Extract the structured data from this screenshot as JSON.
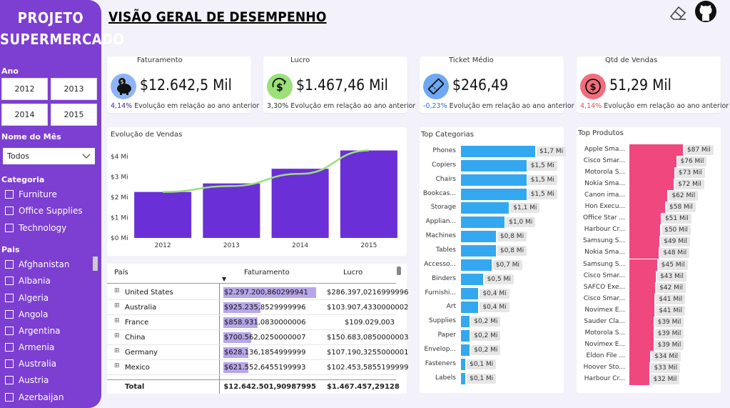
{
  "sidebar": {
    "brand_line1": "PROJETO",
    "brand_line2": "SUPERMERCADO",
    "ano_label": "Ano",
    "years": [
      "2012",
      "2013",
      "2014",
      "2015"
    ],
    "mes_label": "Nome do Mês",
    "mes_value": "Todos",
    "categoria_label": "Categoria",
    "categorias": [
      "Furniture",
      "Office Supplies",
      "Technology"
    ],
    "pais_label": "Pais",
    "paises": [
      "Afghanistan",
      "Albania",
      "Algeria",
      "Angola",
      "Argentina",
      "Armenia",
      "Australia",
      "Austria",
      "Azerbaijan"
    ]
  },
  "header": {
    "title": "VISÃO GERAL DE DESEMPENHO",
    "eraser_icon": "eraser-icon",
    "github_icon": "github-icon"
  },
  "kpis": [
    {
      "title": "Faturamento",
      "value": "$12.642,5 Mil",
      "pct": "4,14%",
      "foot": "Evolução em relação ao ano anterior",
      "icon": "piggy-bank-icon",
      "icon_color": "#8fb4f5",
      "pct_color": "#4a2a8c"
    },
    {
      "title": "Lucro",
      "value": "$1.467,46 Mil",
      "pct": "3,30%",
      "foot": "Evolução em relação ao ano anterior",
      "icon": "money-growth-icon",
      "icon_color": "#9be07a",
      "pct_color": "#333333"
    },
    {
      "title": "Ticket Médio",
      "value": "$246,49",
      "pct": "-0,23%",
      "foot": "Evolução em relação ao ano anterior",
      "icon": "ticket-icon",
      "icon_color": "#6fa8f2",
      "pct_color": "#2f6fd6"
    },
    {
      "title": "Qtd de Vendas",
      "value": "51,29 Mil",
      "pct": "4,14%",
      "foot": "Evolução em relação ao ano anterior",
      "icon": "dollar-coin-icon",
      "icon_color": "#f26d7d",
      "pct_color": "#d9534f"
    }
  ],
  "chart_data": [
    {
      "type": "bar",
      "title": "Evolução de Vendas",
      "categories": [
        "2012",
        "2013",
        "2014",
        "2015"
      ],
      "values": [
        2.26,
        2.68,
        3.4,
        4.3
      ],
      "trend": [
        2.26,
        2.55,
        3.15,
        4.3
      ],
      "ylim": [
        0,
        4.6
      ],
      "yticks": [
        "$0 Mi",
        "$1 Mi",
        "$2 Mi",
        "$3 Mi",
        "$4 Mi"
      ],
      "bar_color": "#6a2fd6",
      "line_color": "#9be07a"
    },
    {
      "type": "bar",
      "title": "Top Categorias",
      "orientation": "horizontal",
      "bar_color": "#33a8f0",
      "max": 1.75,
      "categories": [
        "Phones",
        "Copiers",
        "Chairs",
        "Bookcas...",
        "Storage",
        "Applian...",
        "Machines",
        "Tables",
        "Accesso...",
        "Binders",
        "Furnishi...",
        "Art",
        "Supplies",
        "Paper",
        "Envelop...",
        "Fasteners",
        "Labels"
      ],
      "values": [
        1.7,
        1.5,
        1.5,
        1.5,
        1.1,
        1.0,
        0.8,
        0.8,
        0.7,
        0.5,
        0.4,
        0.4,
        0.2,
        0.2,
        0.2,
        0.1,
        0.1
      ],
      "labels": [
        "$1,7 Mi",
        "$1,5 Mi",
        "$1,5 Mi",
        "$1,5 Mi",
        "$1,1 Mi",
        "$1,0 Mi",
        "$0,8 Mi",
        "$0,8 Mi",
        "$0,7 Mi",
        "$0,5 Mi",
        "$0,4 Mi",
        "$0,4 Mi",
        "$0,2 Mi",
        "$0,2 Mi",
        "$0,2 Mi",
        "$0,1 Mi",
        "$0,1 Mi"
      ]
    },
    {
      "type": "bar",
      "title": "Top Produtos",
      "orientation": "horizontal",
      "bar_color": "#f0477f",
      "max": 87,
      "categories": [
        "Apple Sma...",
        "Cisco Smar...",
        "Motorola S...",
        "Nokia Sma...",
        "Canon ima...",
        "Hon Execu...",
        "Office Star ...",
        "Harbour Cr...",
        "Samsung S...",
        "Nokia Sma...",
        "Samsung S...",
        "Cisco Smar...",
        "SAFCO Exe...",
        "Cisco Smar...",
        "Novimex E...",
        "Sauder Cla...",
        "Motorola S...",
        "Novimex E...",
        "Eldon File ...",
        "Hoover Sto...",
        "Harbour Cr..."
      ],
      "values": [
        87,
        76,
        73,
        72,
        62,
        58,
        51,
        50,
        49,
        48,
        45,
        43,
        42,
        41,
        41,
        39,
        39,
        39,
        34,
        33,
        32
      ],
      "labels": [
        "$87 Mil",
        "$76 Mil",
        "$73 Mil",
        "$72 Mil",
        "$62 Mil",
        "$58 Mil",
        "$51 Mil",
        "$50 Mil",
        "$49 Mil",
        "$48 Mil",
        "$45 Mil",
        "$43 Mil",
        "$42 Mil",
        "$41 Mil",
        "$41 Mil",
        "$39 Mil",
        "$39 Mil",
        "$39 Mil",
        "$34 Mil",
        "$33 Mil",
        "$32 Mil"
      ]
    }
  ],
  "table": {
    "headers": [
      "País",
      "Faturamento",
      "Lucro"
    ],
    "rows": [
      {
        "pais": "United States",
        "fat": "$2.297.200,860299941",
        "lucro": "$286.397,0216999996",
        "frac": 1.0
      },
      {
        "pais": "Australia",
        "fat": "$925.235,8529999996",
        "lucro": "$103.907,4330000002",
        "frac": 0.4
      },
      {
        "pais": "France",
        "fat": "$858.931,0830000006",
        "lucro": "$109.029,003",
        "frac": 0.37
      },
      {
        "pais": "China",
        "fat": "$700.562,0250000007",
        "lucro": "$150.683,0850000003",
        "frac": 0.3
      },
      {
        "pais": "Germany",
        "fat": "$628.136,1854999999",
        "lucro": "$107.190,3255000001",
        "frac": 0.27
      },
      {
        "pais": "Mexico",
        "fat": "$621.552,6455199993",
        "lucro": "$102.453,5855199999",
        "frac": 0.27
      }
    ],
    "total_label": "Total",
    "total_fat": "$12.642.501,90987995",
    "total_lucro": "$1.467.457,29128"
  }
}
